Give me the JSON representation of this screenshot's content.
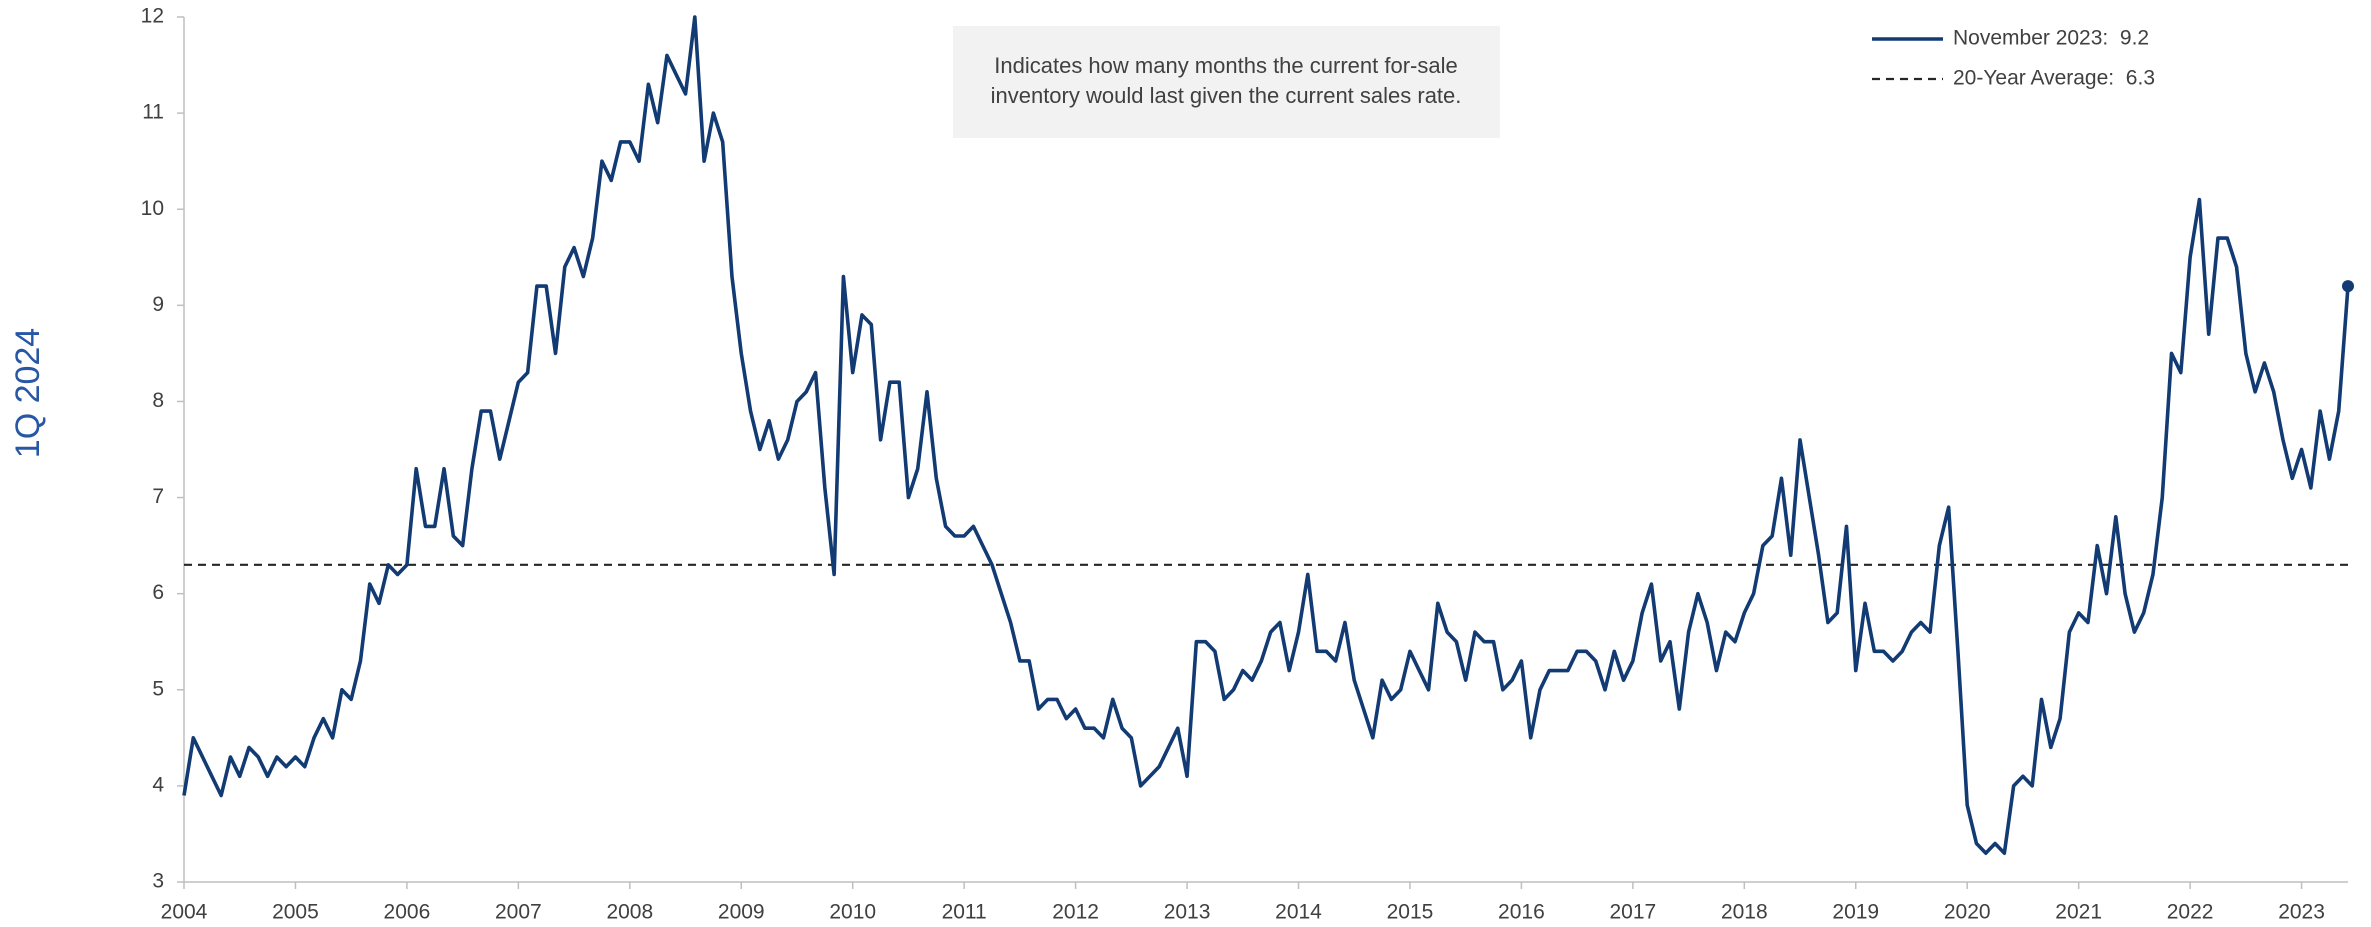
{
  "chart_data": {
    "type": "line",
    "side_label": "1Q 2024",
    "annotation": [
      "Indicates how many months the current for-sale",
      "inventory would last given the current sales rate."
    ],
    "categories": [
      "2004",
      null,
      null,
      null,
      null,
      null,
      null,
      null,
      null,
      null,
      null,
      null,
      "2005",
      null,
      null,
      null,
      null,
      null,
      null,
      null,
      null,
      null,
      null,
      null,
      "2006",
      null,
      null,
      null,
      null,
      null,
      null,
      null,
      null,
      null,
      null,
      null,
      "2007",
      null,
      null,
      null,
      null,
      null,
      null,
      null,
      null,
      null,
      null,
      null,
      "2008",
      null,
      null,
      null,
      null,
      null,
      null,
      null,
      null,
      null,
      null,
      null,
      "2009",
      null,
      null,
      null,
      null,
      null,
      null,
      null,
      null,
      null,
      null,
      null,
      "2010",
      null,
      null,
      null,
      null,
      null,
      null,
      null,
      null,
      null,
      null,
      null,
      "2011",
      null,
      null,
      null,
      null,
      null,
      null,
      null,
      null,
      null,
      null,
      null,
      "2012",
      null,
      null,
      null,
      null,
      null,
      null,
      null,
      null,
      null,
      null,
      null,
      "2013",
      null,
      null,
      null,
      null,
      null,
      null,
      null,
      null,
      null,
      null,
      null,
      "2014",
      null,
      null,
      null,
      null,
      null,
      null,
      null,
      null,
      null,
      null,
      null,
      "2015",
      null,
      null,
      null,
      null,
      null,
      null,
      null,
      null,
      null,
      null,
      null,
      "2016",
      null,
      null,
      null,
      null,
      null,
      null,
      null,
      null,
      null,
      null,
      null,
      "2017",
      null,
      null,
      null,
      null,
      null,
      null,
      null,
      null,
      null,
      null,
      null,
      "2018",
      null,
      null,
      null,
      null,
      null,
      null,
      null,
      null,
      null,
      null,
      null,
      "2019",
      null,
      null,
      null,
      null,
      null,
      null,
      null,
      null,
      null,
      null,
      null,
      "2020",
      null,
      null,
      null,
      null,
      null,
      null,
      null,
      null,
      null,
      null,
      null,
      "2021",
      null,
      null,
      null,
      null,
      null,
      null,
      null,
      null,
      null,
      null,
      null,
      "2022",
      null,
      null,
      null,
      null,
      null,
      null,
      null,
      null,
      null,
      null,
      null,
      "2023",
      null,
      null,
      null,
      null,
      null
    ],
    "series": [
      {
        "name": "November 2023:  9.2",
        "color": "#123a73",
        "end_marker": true,
        "values": [
          3.9,
          4.5,
          4.3,
          4.1,
          3.9,
          4.3,
          4.1,
          4.4,
          4.3,
          4.1,
          4.3,
          4.2,
          4.3,
          4.2,
          4.5,
          4.7,
          4.5,
          5.0,
          4.9,
          5.3,
          6.1,
          5.9,
          6.3,
          6.2,
          6.3,
          7.3,
          6.7,
          6.7,
          7.3,
          6.6,
          6.5,
          7.3,
          7.9,
          7.9,
          7.4,
          7.8,
          8.2,
          8.3,
          9.2,
          9.2,
          8.5,
          9.4,
          9.6,
          9.3,
          9.7,
          10.5,
          10.3,
          10.7,
          10.7,
          10.5,
          11.3,
          10.9,
          11.6,
          11.4,
          11.2,
          12.0,
          10.5,
          11.0,
          10.7,
          9.3,
          8.5,
          7.9,
          7.5,
          7.8,
          7.4,
          7.6,
          8.0,
          8.1,
          8.3,
          7.1,
          6.2,
          9.3,
          8.3,
          8.9,
          8.8,
          7.6,
          8.2,
          8.2,
          7.0,
          7.3,
          8.1,
          7.2,
          6.7,
          6.6,
          6.6,
          6.7,
          6.5,
          6.3,
          6.0,
          5.7,
          5.3,
          5.3,
          4.8,
          4.9,
          4.9,
          4.7,
          4.8,
          4.6,
          4.6,
          4.5,
          4.9,
          4.6,
          4.5,
          4.0,
          4.1,
          4.2,
          4.4,
          4.6,
          4.1,
          5.5,
          5.5,
          5.4,
          4.9,
          5.0,
          5.2,
          5.1,
          5.3,
          5.6,
          5.7,
          5.2,
          5.6,
          6.2,
          5.4,
          5.4,
          5.3,
          5.7,
          5.1,
          4.8,
          4.5,
          5.1,
          4.9,
          5.0,
          5.4,
          5.2,
          5.0,
          5.9,
          5.6,
          5.5,
          5.1,
          5.6,
          5.5,
          5.5,
          5.0,
          5.1,
          5.3,
          4.5,
          5.0,
          5.2,
          5.2,
          5.2,
          5.4,
          5.4,
          5.3,
          5.0,
          5.4,
          5.1,
          5.3,
          5.8,
          6.1,
          5.3,
          5.5,
          4.8,
          5.6,
          6.0,
          5.7,
          5.2,
          5.6,
          5.5,
          5.8,
          6.0,
          6.5,
          6.6,
          7.2,
          6.4,
          7.6,
          7.0,
          6.4,
          5.7,
          5.8,
          6.7,
          5.2,
          5.9,
          5.4,
          5.4,
          5.3,
          5.4,
          5.6,
          5.7,
          5.6,
          6.5,
          6.9,
          5.4,
          3.8,
          3.4,
          3.3,
          3.4,
          3.3,
          4.0,
          4.1,
          4.0,
          4.9,
          4.4,
          4.7,
          5.6,
          5.8,
          5.7,
          6.5,
          6.0,
          6.8,
          6.0,
          5.6,
          5.8,
          6.2,
          7.0,
          8.5,
          8.3,
          9.5,
          10.1,
          8.7,
          9.7,
          9.7,
          9.4,
          8.5,
          8.1,
          8.4,
          8.1,
          7.6,
          7.2,
          7.5,
          7.1,
          7.9,
          7.4,
          7.9,
          9.2
        ]
      }
    ],
    "reference_lines": [
      {
        "name": "20-Year Average:  6.3",
        "value": 6.3,
        "color": "#262626",
        "style": "dashed"
      }
    ],
    "ylim": [
      3,
      12
    ],
    "yticks": [
      3,
      4,
      5,
      6,
      7,
      8,
      9,
      10,
      11,
      12
    ],
    "grid": false,
    "legend": "top-right"
  }
}
